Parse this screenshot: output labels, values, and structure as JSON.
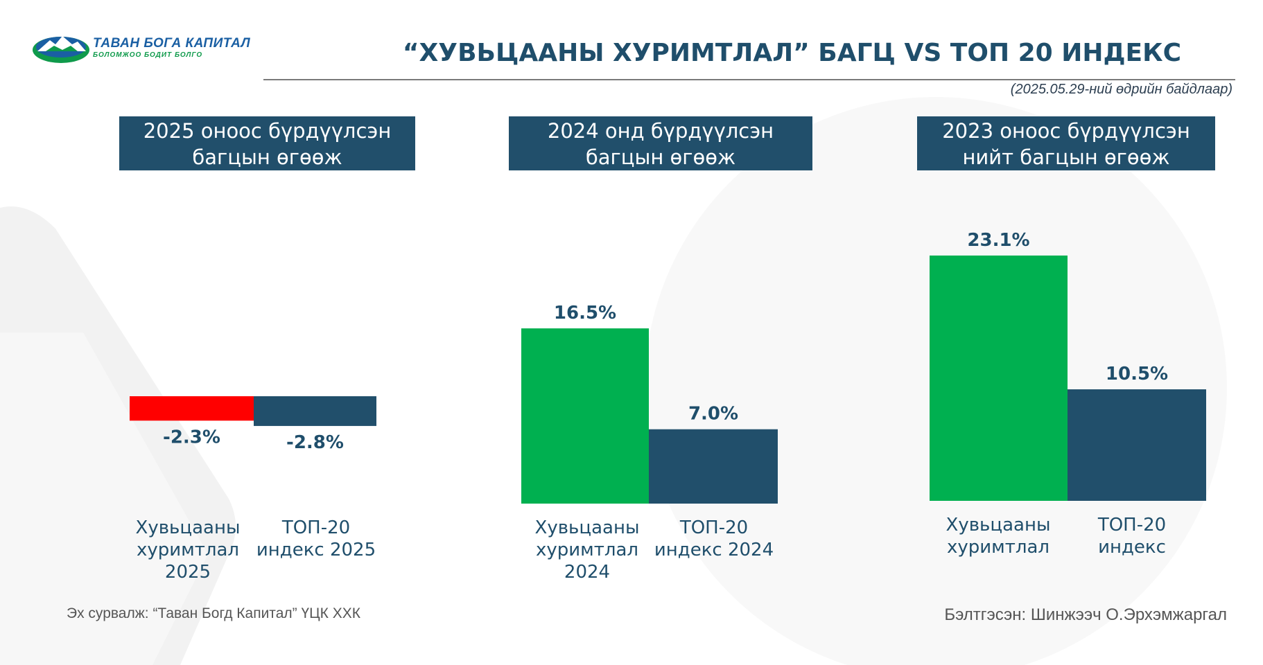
{
  "logo": {
    "name": "ТАВАН БОГА КАПИТАЛ",
    "tagline": "БОЛОМЖОО БОДИТ БОЛГО"
  },
  "title": "“ХУВЬЦААНЫ ХУРИМТЛАЛ” БАГЦ VS ТОП 20 ИНДЕКС",
  "as_of": "(2025.05.29-ний өдрийн байдлаар)",
  "footer": {
    "source": "Эх сурвалж: “Таван Богд Капитал” ҮЦК ХХК",
    "prepared_by": "Бэлтгэсэн: Шинжээч О.Эрхэмжаргал"
  },
  "colors": {
    "navy": "#214f6b",
    "green": "#00b050",
    "red": "#ff0000"
  },
  "chart_data": [
    {
      "type": "bar",
      "title": "2025 оноос бүрдүүлсэн\nбагцын өгөөж",
      "categories": [
        "Хувьцааны\nхуримтлал\n2025",
        "ТОП-20\nиндекс 2025"
      ],
      "values": [
        -2.3,
        -2.8
      ],
      "value_labels": [
        "-2.3%",
        "-2.8%"
      ],
      "bar_colors": [
        "#ff0000",
        "#214f6b"
      ]
    },
    {
      "type": "bar",
      "title": "2024 онд бүрдүүлсэн\nбагцын өгөөж",
      "categories": [
        "Хувьцааны\nхуримтлал\n2024",
        "ТОП-20\nиндекс 2024"
      ],
      "values": [
        16.5,
        7.0
      ],
      "value_labels": [
        "16.5%",
        "7.0%"
      ],
      "bar_colors": [
        "#00b050",
        "#214f6b"
      ]
    },
    {
      "type": "bar",
      "title": "2023 оноос бүрдүүлсэн\nнийт багцын өгөөж",
      "categories": [
        "Хувьцааны\nхуримтлал",
        "ТОП-20\nиндекс"
      ],
      "values": [
        23.1,
        10.5
      ],
      "value_labels": [
        "23.1%",
        "10.5%"
      ],
      "bar_colors": [
        "#00b050",
        "#214f6b"
      ]
    }
  ]
}
